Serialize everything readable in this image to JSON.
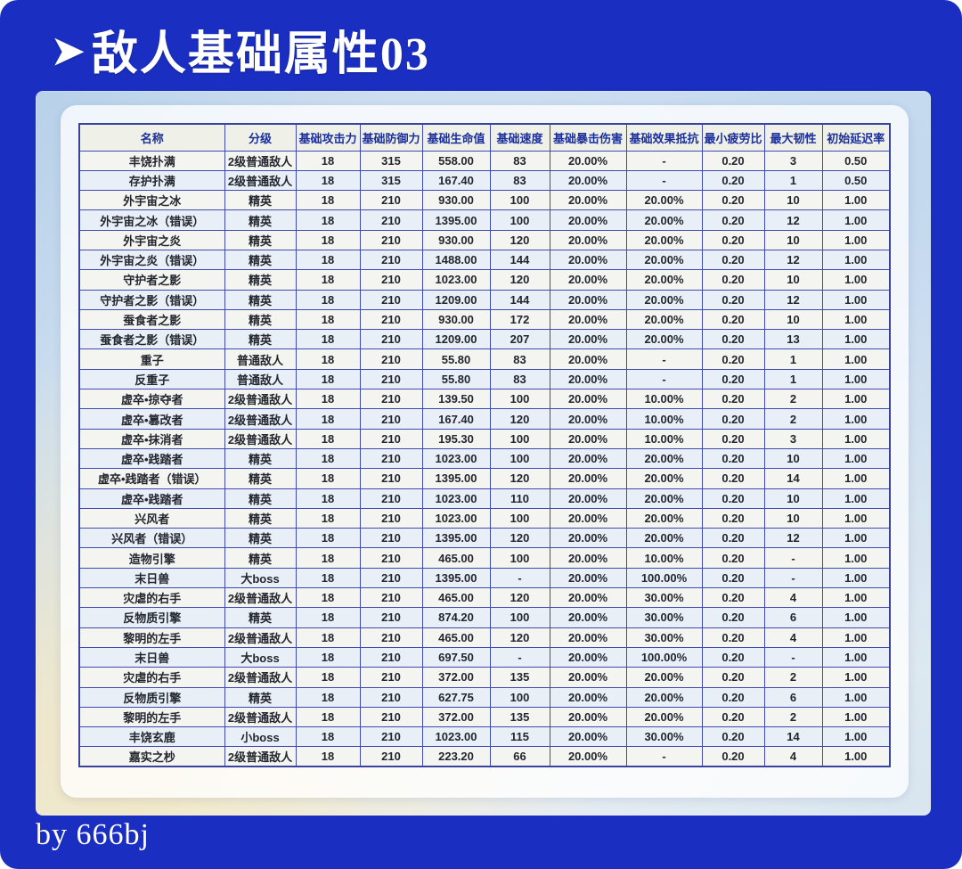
{
  "page": {
    "title_arrow": "➤",
    "title": "敌人基础属性03",
    "footer_credit": "by 666bj"
  },
  "colors": {
    "page_background": "#1a2fc2",
    "table_border": "#3f4aae",
    "header_text": "#1b2f9c",
    "title_text": "#ffffff"
  },
  "table": {
    "headers": [
      "名称",
      "分级",
      "基础攻击力",
      "基础防御力",
      "基础生命值",
      "基础速度",
      "基础暴击伤害",
      "基础效果抵抗",
      "最小疲劳比",
      "最大韧性",
      "初始延迟率"
    ],
    "rows": [
      [
        "丰饶扑满",
        "2级普通敌人",
        "18",
        "315",
        "558.00",
        "83",
        "20.00%",
        "-",
        "0.20",
        "3",
        "0.50"
      ],
      [
        "存护扑满",
        "2级普通敌人",
        "18",
        "315",
        "167.40",
        "83",
        "20.00%",
        "-",
        "0.20",
        "1",
        "0.50"
      ],
      [
        "外宇宙之冰",
        "精英",
        "18",
        "210",
        "930.00",
        "100",
        "20.00%",
        "20.00%",
        "0.20",
        "10",
        "1.00"
      ],
      [
        "外宇宙之冰（错误）",
        "精英",
        "18",
        "210",
        "1395.00",
        "100",
        "20.00%",
        "20.00%",
        "0.20",
        "12",
        "1.00"
      ],
      [
        "外宇宙之炎",
        "精英",
        "18",
        "210",
        "930.00",
        "120",
        "20.00%",
        "20.00%",
        "0.20",
        "10",
        "1.00"
      ],
      [
        "外宇宙之炎（错误）",
        "精英",
        "18",
        "210",
        "1488.00",
        "144",
        "20.00%",
        "20.00%",
        "0.20",
        "12",
        "1.00"
      ],
      [
        "守护者之影",
        "精英",
        "18",
        "210",
        "1023.00",
        "120",
        "20.00%",
        "20.00%",
        "0.20",
        "10",
        "1.00"
      ],
      [
        "守护者之影（错误）",
        "精英",
        "18",
        "210",
        "1209.00",
        "144",
        "20.00%",
        "20.00%",
        "0.20",
        "12",
        "1.00"
      ],
      [
        "蚕食者之影",
        "精英",
        "18",
        "210",
        "930.00",
        "172",
        "20.00%",
        "20.00%",
        "0.20",
        "10",
        "1.00"
      ],
      [
        "蚕食者之影（错误）",
        "精英",
        "18",
        "210",
        "1209.00",
        "207",
        "20.00%",
        "20.00%",
        "0.20",
        "13",
        "1.00"
      ],
      [
        "重子",
        "普通敌人",
        "18",
        "210",
        "55.80",
        "83",
        "20.00%",
        "-",
        "0.20",
        "1",
        "1.00"
      ],
      [
        "反重子",
        "普通敌人",
        "18",
        "210",
        "55.80",
        "83",
        "20.00%",
        "-",
        "0.20",
        "1",
        "1.00"
      ],
      [
        "虚卒•掠夺者",
        "2级普通敌人",
        "18",
        "210",
        "139.50",
        "100",
        "20.00%",
        "10.00%",
        "0.20",
        "2",
        "1.00"
      ],
      [
        "虚卒•篡改者",
        "2级普通敌人",
        "18",
        "210",
        "167.40",
        "120",
        "20.00%",
        "10.00%",
        "0.20",
        "2",
        "1.00"
      ],
      [
        "虚卒•抹消者",
        "2级普通敌人",
        "18",
        "210",
        "195.30",
        "100",
        "20.00%",
        "10.00%",
        "0.20",
        "3",
        "1.00"
      ],
      [
        "虚卒•践踏者",
        "精英",
        "18",
        "210",
        "1023.00",
        "100",
        "20.00%",
        "20.00%",
        "0.20",
        "10",
        "1.00"
      ],
      [
        "虚卒•践踏者（错误）",
        "精英",
        "18",
        "210",
        "1395.00",
        "120",
        "20.00%",
        "20.00%",
        "0.20",
        "14",
        "1.00"
      ],
      [
        "虚卒•践踏者",
        "精英",
        "18",
        "210",
        "1023.00",
        "110",
        "20.00%",
        "20.00%",
        "0.20",
        "10",
        "1.00"
      ],
      [
        "兴风者",
        "精英",
        "18",
        "210",
        "1023.00",
        "100",
        "20.00%",
        "20.00%",
        "0.20",
        "10",
        "1.00"
      ],
      [
        "兴风者（错误）",
        "精英",
        "18",
        "210",
        "1395.00",
        "120",
        "20.00%",
        "20.00%",
        "0.20",
        "12",
        "1.00"
      ],
      [
        "造物引擎",
        "精英",
        "18",
        "210",
        "465.00",
        "100",
        "20.00%",
        "10.00%",
        "0.20",
        "-",
        "1.00"
      ],
      [
        "末日兽",
        "大boss",
        "18",
        "210",
        "1395.00",
        "-",
        "20.00%",
        "100.00%",
        "0.20",
        "-",
        "1.00"
      ],
      [
        "灾虐的右手",
        "2级普通敌人",
        "18",
        "210",
        "465.00",
        "120",
        "20.00%",
        "30.00%",
        "0.20",
        "4",
        "1.00"
      ],
      [
        "反物质引擎",
        "精英",
        "18",
        "210",
        "874.20",
        "100",
        "20.00%",
        "30.00%",
        "0.20",
        "6",
        "1.00"
      ],
      [
        "黎明的左手",
        "2级普通敌人",
        "18",
        "210",
        "465.00",
        "120",
        "20.00%",
        "30.00%",
        "0.20",
        "4",
        "1.00"
      ],
      [
        "末日兽",
        "大boss",
        "18",
        "210",
        "697.50",
        "-",
        "20.00%",
        "100.00%",
        "0.20",
        "-",
        "1.00"
      ],
      [
        "灾虐的右手",
        "2级普通敌人",
        "18",
        "210",
        "372.00",
        "135",
        "20.00%",
        "20.00%",
        "0.20",
        "2",
        "1.00"
      ],
      [
        "反物质引擎",
        "精英",
        "18",
        "210",
        "627.75",
        "100",
        "20.00%",
        "20.00%",
        "0.20",
        "6",
        "1.00"
      ],
      [
        "黎明的左手",
        "2级普通敌人",
        "18",
        "210",
        "372.00",
        "135",
        "20.00%",
        "20.00%",
        "0.20",
        "2",
        "1.00"
      ],
      [
        "丰饶玄鹿",
        "小boss",
        "18",
        "210",
        "1023.00",
        "115",
        "20.00%",
        "30.00%",
        "0.20",
        "14",
        "1.00"
      ],
      [
        "嘉实之杪",
        "2级普通敌人",
        "18",
        "210",
        "223.20",
        "66",
        "20.00%",
        "-",
        "0.20",
        "4",
        "1.00"
      ]
    ]
  }
}
